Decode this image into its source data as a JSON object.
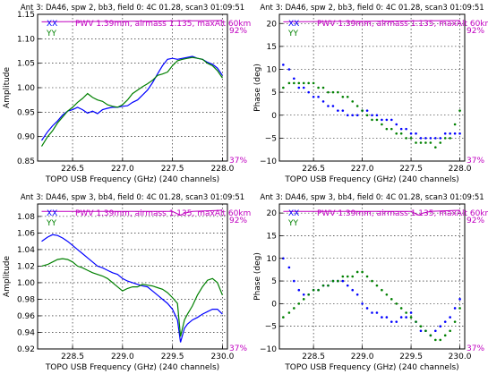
{
  "figure": {
    "background": "#ffffff"
  },
  "chart_data": [
    {
      "type": "line",
      "title": "Ant 3: DA46,  spw 2, bb3,  field 0: 4C 01.28,  scan3  01:09:51",
      "xlabel": "TOPO USB Frequency (GHz) (240 channels)",
      "ylabel": "Amplitude",
      "xlim": [
        226.15,
        228.05
      ],
      "ylim": [
        0.85,
        1.15
      ],
      "xticks": [
        226.5,
        227.0,
        227.5,
        228.0
      ],
      "xtick_labels": [
        "226.5",
        "227.0",
        "227.5",
        "228.0"
      ],
      "yticks": [
        0.85,
        0.9,
        0.95,
        1.0,
        1.05,
        1.1,
        1.15
      ],
      "ytick_labels": [
        "0.85",
        "0.90",
        "0.95",
        "1.00",
        "1.05",
        "1.10",
        "1.15"
      ],
      "grid": true,
      "legend": "top-left",
      "series": [
        {
          "name": "XX",
          "color": "#0000ff",
          "style": "line",
          "x": [
            226.19,
            226.25,
            226.3,
            226.35,
            226.4,
            226.45,
            226.5,
            226.55,
            226.6,
            226.65,
            226.7,
            226.75,
            226.8,
            226.85,
            226.9,
            226.95,
            227.0,
            227.05,
            227.1,
            227.15,
            227.2,
            227.25,
            227.3,
            227.35,
            227.4,
            227.45,
            227.5,
            227.55,
            227.6,
            227.65,
            227.7,
            227.75,
            227.8,
            227.85,
            227.9,
            227.95,
            228.0
          ],
          "y": [
            0.892,
            0.91,
            0.922,
            0.932,
            0.944,
            0.952,
            0.955,
            0.96,
            0.955,
            0.948,
            0.952,
            0.947,
            0.955,
            0.958,
            0.96,
            0.96,
            0.962,
            0.963,
            0.97,
            0.975,
            0.985,
            0.995,
            1.01,
            1.028,
            1.045,
            1.058,
            1.06,
            1.058,
            1.06,
            1.062,
            1.064,
            1.06,
            1.058,
            1.052,
            1.048,
            1.04,
            1.025
          ]
        },
        {
          "name": "YY",
          "color": "#008000",
          "style": "line",
          "x": [
            226.19,
            226.25,
            226.3,
            226.35,
            226.4,
            226.45,
            226.5,
            226.55,
            226.6,
            226.65,
            226.7,
            226.75,
            226.8,
            226.85,
            226.9,
            226.95,
            227.0,
            227.05,
            227.1,
            227.15,
            227.2,
            227.25,
            227.3,
            227.35,
            227.4,
            227.45,
            227.5,
            227.55,
            227.6,
            227.65,
            227.7,
            227.75,
            227.8,
            227.85,
            227.9,
            227.95,
            228.0
          ],
          "y": [
            0.88,
            0.9,
            0.912,
            0.928,
            0.94,
            0.952,
            0.96,
            0.97,
            0.978,
            0.988,
            0.98,
            0.975,
            0.972,
            0.965,
            0.962,
            0.96,
            0.965,
            0.975,
            0.988,
            0.995,
            1.002,
            1.008,
            1.015,
            1.025,
            1.028,
            1.032,
            1.045,
            1.055,
            1.058,
            1.06,
            1.062,
            1.06,
            1.058,
            1.05,
            1.045,
            1.035,
            1.02
          ]
        },
        {
          "name": "PWV",
          "color": "#c000c0",
          "style": "line",
          "axis": "right",
          "x": [
            226.19,
            228.0
          ],
          "y": [
            91.5,
            92.0
          ]
        }
      ],
      "annotations": [
        "XX",
        "YY",
        "PWV 1.39mm, airmass 1.135, maxAlt 60km"
      ],
      "right_axis_labels": [
        "92%",
        "37%"
      ]
    },
    {
      "type": "scatter",
      "title": "Ant 3: DA46,  spw 2, bb3,  field 0: 4C 01.28,  scan3  01:09:51",
      "xlabel": "TOPO USB Frequency (GHz) (240 channels)",
      "ylabel": "Phase (deg)",
      "xlim": [
        226.15,
        228.05
      ],
      "ylim": [
        -10,
        22
      ],
      "xticks": [
        226.5,
        227.0,
        227.5,
        228.0
      ],
      "xtick_labels": [
        "226.5",
        "227.0",
        "227.5",
        "228.0"
      ],
      "yticks": [
        -10,
        -5,
        0,
        5,
        10,
        15,
        20
      ],
      "ytick_labels": [
        "−10",
        "−5",
        "0",
        "5",
        "10",
        "15",
        "20"
      ],
      "grid": true,
      "legend": "top-left",
      "series": [
        {
          "name": "XX",
          "color": "#0000ff",
          "style": "points",
          "x": [
            226.19,
            226.25,
            226.3,
            226.35,
            226.4,
            226.45,
            226.5,
            226.55,
            226.6,
            226.65,
            226.7,
            226.75,
            226.8,
            226.85,
            226.9,
            226.95,
            227.0,
            227.05,
            227.1,
            227.15,
            227.2,
            227.25,
            227.3,
            227.35,
            227.4,
            227.45,
            227.5,
            227.55,
            227.6,
            227.65,
            227.7,
            227.75,
            227.8,
            227.85,
            227.9,
            227.95,
            228.0
          ],
          "y": [
            11,
            10,
            8,
            6,
            6,
            5,
            4,
            4,
            3,
            2,
            2,
            1,
            1,
            0,
            0,
            0,
            1,
            1,
            0,
            0,
            -1,
            -1,
            -1,
            -2,
            -3,
            -3,
            -4,
            -4,
            -5,
            -5,
            -5,
            -5,
            -5,
            -4,
            -4,
            -4,
            -4
          ]
        },
        {
          "name": "YY",
          "color": "#008000",
          "style": "points",
          "x": [
            226.19,
            226.25,
            226.3,
            226.35,
            226.4,
            226.45,
            226.5,
            226.55,
            226.6,
            226.65,
            226.7,
            226.75,
            226.8,
            226.85,
            226.9,
            226.95,
            227.0,
            227.05,
            227.1,
            227.15,
            227.2,
            227.25,
            227.3,
            227.35,
            227.4,
            227.45,
            227.5,
            227.55,
            227.6,
            227.65,
            227.7,
            227.75,
            227.8,
            227.85,
            227.9,
            227.95,
            228.0
          ],
          "y": [
            6,
            7,
            7,
            7,
            7,
            7,
            7,
            6,
            6,
            5,
            5,
            5,
            4,
            4,
            3,
            2,
            1,
            0,
            -1,
            -1,
            -2,
            -3,
            -3,
            -4,
            -4,
            -5,
            -5,
            -6,
            -6,
            -6,
            -6,
            -7,
            -6,
            -5,
            -5,
            -2,
            1
          ]
        },
        {
          "name": "PWV",
          "color": "#c000c0",
          "style": "line",
          "axis": "right",
          "x": [
            226.19,
            228.0
          ],
          "y": [
            91.5,
            92.0
          ]
        }
      ],
      "annotations": [
        "XX",
        "YY",
        "PWV 1.39mm, airmass 1.135, maxAlt 60km"
      ],
      "right_axis_labels": [
        "92%",
        "37%"
      ]
    },
    {
      "type": "line",
      "title": "Ant 3: DA46,  spw 3, bb4,  field 0: 4C 01.28,  scan3  01:09:51",
      "xlabel": "TOPO USB Frequency (GHz) (240 channels)",
      "ylabel": "Amplitude",
      "xlim": [
        228.15,
        230.05
      ],
      "ylim": [
        0.92,
        1.095
      ],
      "xticks": [
        228.5,
        229.0,
        229.5,
        230.0
      ],
      "xtick_labels": [
        "228.5",
        "229.0",
        "229.5",
        "230.0"
      ],
      "yticks": [
        0.92,
        0.94,
        0.96,
        0.98,
        1.0,
        1.02,
        1.04,
        1.06,
        1.08
      ],
      "ytick_labels": [
        "0.92",
        "0.94",
        "0.96",
        "0.98",
        "1.00",
        "1.02",
        "1.04",
        "1.06",
        "1.08"
      ],
      "grid": true,
      "legend": "top-left",
      "series": [
        {
          "name": "XX",
          "color": "#0000ff",
          "style": "line",
          "x": [
            228.19,
            228.25,
            228.3,
            228.35,
            228.4,
            228.45,
            228.5,
            228.55,
            228.6,
            228.65,
            228.7,
            228.75,
            228.8,
            228.85,
            228.9,
            228.95,
            229.0,
            229.05,
            229.1,
            229.15,
            229.2,
            229.25,
            229.3,
            229.35,
            229.4,
            229.45,
            229.5,
            229.55,
            229.58,
            229.62,
            229.65,
            229.7,
            229.75,
            229.8,
            229.85,
            229.9,
            229.95,
            230.0
          ],
          "y": [
            1.05,
            1.055,
            1.058,
            1.057,
            1.054,
            1.05,
            1.045,
            1.04,
            1.035,
            1.03,
            1.025,
            1.02,
            1.018,
            1.015,
            1.012,
            1.01,
            1.005,
            1.002,
            1.0,
            0.998,
            0.996,
            0.995,
            0.99,
            0.985,
            0.98,
            0.975,
            0.968,
            0.955,
            0.928,
            0.945,
            0.95,
            0.955,
            0.958,
            0.962,
            0.965,
            0.968,
            0.968,
            0.962
          ]
        },
        {
          "name": "YY",
          "color": "#008000",
          "style": "line",
          "x": [
            228.19,
            228.25,
            228.3,
            228.35,
            228.4,
            228.45,
            228.5,
            228.55,
            228.6,
            228.65,
            228.7,
            228.75,
            228.8,
            228.85,
            228.9,
            228.95,
            229.0,
            229.05,
            229.1,
            229.15,
            229.2,
            229.25,
            229.3,
            229.35,
            229.4,
            229.45,
            229.5,
            229.55,
            229.58,
            229.62,
            229.65,
            229.7,
            229.75,
            229.8,
            229.85,
            229.9,
            229.95,
            230.0
          ],
          "y": [
            1.02,
            1.022,
            1.025,
            1.028,
            1.029,
            1.028,
            1.025,
            1.02,
            1.018,
            1.015,
            1.012,
            1.01,
            1.008,
            1.005,
            1.0,
            0.995,
            0.99,
            0.993,
            0.995,
            0.995,
            0.998,
            0.997,
            0.996,
            0.994,
            0.992,
            0.988,
            0.982,
            0.975,
            0.935,
            0.955,
            0.962,
            0.972,
            0.985,
            0.995,
            1.003,
            1.005,
            1.0,
            0.985
          ]
        },
        {
          "name": "PWV",
          "color": "#c000c0",
          "style": "line",
          "axis": "right",
          "x": [
            228.19,
            229.5,
            229.55,
            229.58,
            229.62,
            229.7,
            230.0
          ],
          "y": [
            91.5,
            91.5,
            90.5,
            90.0,
            90.8,
            91.5,
            92.0
          ]
        }
      ],
      "annotations": [
        "XX",
        "YY",
        "PWV 1.39mm, airmass 1.135, maxAlt 60km"
      ],
      "right_axis_labels": [
        "92%",
        "37%"
      ]
    },
    {
      "type": "scatter",
      "title": "Ant 3: DA46,  spw 3, bb4,  field 0: 4C 01.28,  scan3  01:09:51",
      "xlabel": "TOPO USB Frequency (GHz) (240 channels)",
      "ylabel": "Phase (deg)",
      "xlim": [
        228.15,
        230.05
      ],
      "ylim": [
        -10,
        22
      ],
      "xticks": [
        228.5,
        229.0,
        229.5,
        230.0
      ],
      "xtick_labels": [
        "228.5",
        "229.0",
        "229.5",
        "230.0"
      ],
      "yticks": [
        -10,
        -5,
        0,
        5,
        10,
        15,
        20
      ],
      "ytick_labels": [
        "−10",
        "−5",
        "0",
        "5",
        "10",
        "15",
        "20"
      ],
      "grid": true,
      "legend": "top-left",
      "series": [
        {
          "name": "XX",
          "color": "#0000ff",
          "style": "points",
          "x": [
            228.19,
            228.25,
            228.3,
            228.35,
            228.4,
            228.45,
            228.5,
            228.55,
            228.6,
            228.65,
            228.7,
            228.75,
            228.8,
            228.85,
            228.9,
            228.95,
            229.0,
            229.05,
            229.1,
            229.15,
            229.2,
            229.25,
            229.3,
            229.35,
            229.4,
            229.45,
            229.5,
            229.55,
            229.6,
            229.65,
            229.7,
            229.75,
            229.8,
            229.85,
            229.9,
            229.95,
            230.0
          ],
          "y": [
            10,
            8,
            5,
            3,
            2,
            2,
            3,
            3,
            4,
            4,
            5,
            5,
            5,
            4,
            3,
            2,
            0,
            -1,
            -2,
            -2,
            -3,
            -3,
            -4,
            -4,
            -3,
            -3,
            -2,
            -4,
            -6,
            -6,
            -7,
            -6,
            -5,
            -4,
            -3,
            -1,
            1
          ]
        },
        {
          "name": "YY",
          "color": "#008000",
          "style": "points",
          "x": [
            228.19,
            228.25,
            228.3,
            228.35,
            228.4,
            228.45,
            228.5,
            228.55,
            228.6,
            228.65,
            228.7,
            228.75,
            228.8,
            228.85,
            228.9,
            228.95,
            229.0,
            229.05,
            229.1,
            229.15,
            229.2,
            229.25,
            229.3,
            229.35,
            229.4,
            229.45,
            229.5,
            229.55,
            229.6,
            229.65,
            229.7,
            229.75,
            229.8,
            229.85,
            229.9,
            229.95,
            230.0
          ],
          "y": [
            -3,
            -2,
            -1,
            0,
            1,
            2,
            3,
            3,
            4,
            4,
            5,
            5,
            6,
            6,
            6,
            7,
            7,
            6,
            5,
            4,
            3,
            2,
            1,
            0,
            -1,
            -2,
            -3,
            -4,
            -5,
            -6,
            -7,
            -8,
            -8,
            -7,
            -6,
            -4,
            -1
          ]
        },
        {
          "name": "PWV",
          "color": "#c000c0",
          "style": "line",
          "axis": "right",
          "x": [
            228.19,
            229.5,
            229.55,
            229.58,
            229.62,
            229.7,
            230.0
          ],
          "y": [
            91.5,
            91.5,
            90.5,
            90.0,
            90.8,
            91.5,
            92.0
          ]
        }
      ],
      "annotations": [
        "XX",
        "YY",
        "PWV 1.39mm, airmass 1.135, maxAlt 60km"
      ],
      "right_axis_labels": [
        "92%",
        "37%"
      ]
    }
  ]
}
